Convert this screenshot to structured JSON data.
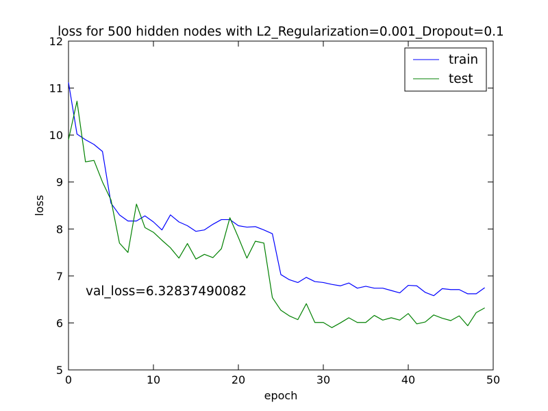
{
  "chart_data": {
    "type": "line",
    "title": "loss for 500 hidden nodes with L2_Regularization=0.001_Dropout=0.1",
    "xlabel": "epoch",
    "ylabel": "loss",
    "xlim": [
      0,
      50
    ],
    "ylim": [
      5,
      12
    ],
    "xticks": [
      "0",
      "10",
      "20",
      "30",
      "40",
      "50"
    ],
    "yticks": [
      "5",
      "6",
      "7",
      "8",
      "9",
      "10",
      "11",
      "12"
    ],
    "grid": false,
    "legend_position": "top-right",
    "annotation": "val_loss=6.32837490082",
    "annotation_at": [
      2,
      6.6
    ],
    "series": [
      {
        "name": "train",
        "color": "#0000ff",
        "x": [
          0,
          1,
          2,
          3,
          4,
          5,
          6,
          7,
          8,
          9,
          10,
          11,
          12,
          13,
          14,
          15,
          16,
          17,
          18,
          19,
          20,
          21,
          22,
          23,
          24,
          25,
          26,
          27,
          28,
          29,
          30,
          31,
          32,
          33,
          34,
          35,
          36,
          37,
          38,
          39,
          40,
          41,
          42,
          43,
          44,
          45,
          46,
          47,
          48,
          49
        ],
        "values": [
          11.12,
          10.02,
          9.9,
          9.8,
          9.65,
          8.55,
          8.3,
          8.17,
          8.17,
          8.28,
          8.15,
          7.98,
          8.3,
          8.15,
          8.07,
          7.95,
          7.98,
          8.1,
          8.2,
          8.2,
          8.07,
          8.04,
          8.05,
          7.98,
          7.9,
          7.03,
          6.92,
          6.86,
          6.97,
          6.88,
          6.86,
          6.82,
          6.79,
          6.85,
          6.74,
          6.78,
          6.74,
          6.74,
          6.69,
          6.64,
          6.8,
          6.79,
          6.65,
          6.58,
          6.73,
          6.71,
          6.71,
          6.62,
          6.62,
          6.75
        ]
      },
      {
        "name": "test",
        "color": "#008000",
        "x": [
          0,
          1,
          2,
          3,
          4,
          5,
          6,
          7,
          8,
          9,
          10,
          11,
          12,
          13,
          14,
          15,
          16,
          17,
          18,
          19,
          20,
          21,
          22,
          23,
          24,
          25,
          26,
          27,
          28,
          29,
          30,
          31,
          32,
          33,
          34,
          35,
          36,
          37,
          38,
          39,
          40,
          41,
          42,
          43,
          44,
          45,
          46,
          47,
          48,
          49
        ],
        "values": [
          9.9,
          10.72,
          9.43,
          9.46,
          9.0,
          8.62,
          7.7,
          7.5,
          8.53,
          8.03,
          7.93,
          7.76,
          7.6,
          7.38,
          7.69,
          7.36,
          7.46,
          7.39,
          7.58,
          8.24,
          7.82,
          7.38,
          7.74,
          7.7,
          6.54,
          6.27,
          6.15,
          6.07,
          6.41,
          6.01,
          6.01,
          5.9,
          6.0,
          6.11,
          6.01,
          6.01,
          6.16,
          6.06,
          6.11,
          6.06,
          6.2,
          5.98,
          6.02,
          6.17,
          6.1,
          6.05,
          6.15,
          5.94,
          6.22,
          6.32
        ]
      }
    ]
  }
}
